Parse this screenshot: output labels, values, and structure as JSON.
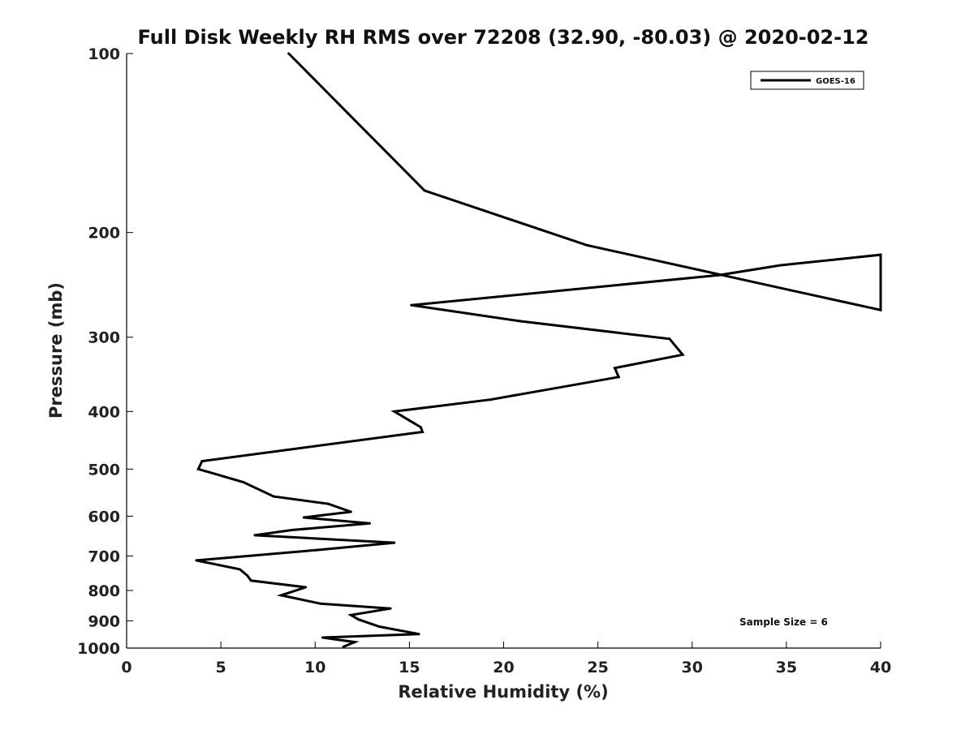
{
  "chart_data": {
    "type": "line",
    "title": "Full Disk Weekly RH RMS over 72208 (32.90, -80.03) @ 2020-02-12",
    "xlabel": "Relative Humidity (%)",
    "ylabel": "Pressure (mb)",
    "xlim": [
      0,
      40
    ],
    "ylim": [
      100,
      1000
    ],
    "y_scale": "log",
    "y_reversed": true,
    "grid": false,
    "legend_position": "top-right",
    "x_ticks": [
      "0",
      "5",
      "10",
      "15",
      "20",
      "25",
      "30",
      "35",
      "40"
    ],
    "y_ticks": [
      "100",
      "200",
      "300",
      "400",
      "500",
      "600",
      "700",
      "800",
      "900",
      "1000"
    ],
    "annotation": "Sample Size = 6",
    "series": [
      {
        "name": "GOES-16",
        "color": "#000000",
        "x": [
          8.6,
          11.3,
          15.8,
          24.4,
          35.2,
          40.0,
          40.0,
          34.7,
          31.4,
          15.1,
          20.9,
          28.8,
          29.5,
          25.9,
          26.1,
          19.3,
          14.2,
          15.6,
          15.7,
          4.0,
          3.8,
          6.2,
          7.8,
          10.7,
          11.9,
          9.4,
          12.9,
          8.8,
          6.8,
          14.2,
          10.1,
          3.7,
          6.0,
          6.4,
          6.6,
          9.5,
          8.2,
          10.3,
          14.0,
          11.9,
          12.3,
          13.4,
          15.5,
          10.4,
          12.1,
          11.5
        ],
        "y": [
          100,
          122,
          170,
          210,
          250,
          270,
          218,
          227,
          236,
          265,
          282,
          302,
          321,
          338,
          350,
          382,
          400,
          425,
          433,
          485,
          500,
          526,
          556,
          572,
          590,
          603,
          617,
          633,
          646,
          665,
          684,
          712,
          737,
          755,
          770,
          790,
          815,
          842,
          858,
          880,
          895,
          920,
          947,
          960,
          977,
          995
        ]
      }
    ]
  }
}
